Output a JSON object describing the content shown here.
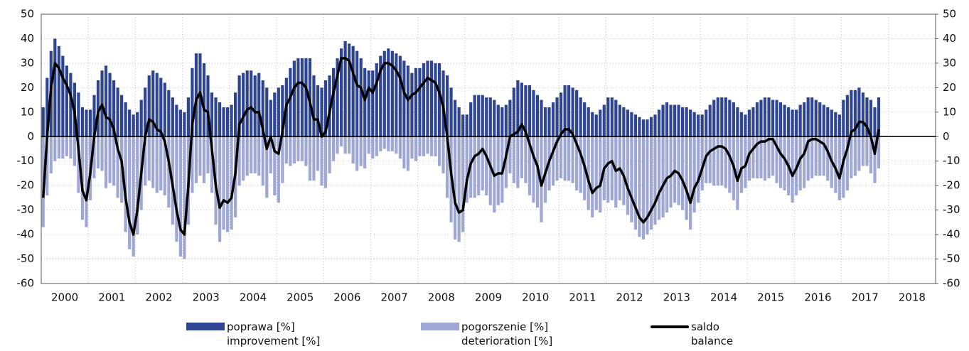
{
  "chart_data": {
    "type": "bar-line",
    "categories": [
      null,
      null,
      null,
      null,
      null,
      null,
      "2000",
      null,
      null,
      null,
      null,
      null,
      null,
      null,
      null,
      null,
      null,
      null,
      "2001",
      null,
      null,
      null,
      null,
      null,
      null,
      null,
      null,
      null,
      null,
      null,
      "2002",
      null,
      null,
      null,
      null,
      null,
      null,
      null,
      null,
      null,
      null,
      null,
      "2003",
      null,
      null,
      null,
      null,
      null,
      null,
      null,
      null,
      null,
      null,
      null,
      "2004",
      null,
      null,
      null,
      null,
      null,
      null,
      null,
      null,
      null,
      null,
      null,
      "2005",
      null,
      null,
      null,
      null,
      null,
      null,
      null,
      null,
      null,
      null,
      null,
      "2006",
      null,
      null,
      null,
      null,
      null,
      null,
      null,
      null,
      null,
      null,
      null,
      "2007",
      null,
      null,
      null,
      null,
      null,
      null,
      null,
      null,
      null,
      null,
      null,
      "2008",
      null,
      null,
      null,
      null,
      null,
      null,
      null,
      null,
      null,
      null,
      null,
      "2009",
      null,
      null,
      null,
      null,
      null,
      null,
      null,
      null,
      null,
      null,
      null,
      "2010",
      null,
      null,
      null,
      null,
      null,
      null,
      null,
      null,
      null,
      null,
      null,
      "2011",
      null,
      null,
      null,
      null,
      null,
      null,
      null,
      null,
      null,
      null,
      null,
      "2012",
      null,
      null,
      null,
      null,
      null,
      null,
      null,
      null,
      null,
      null,
      null,
      "2013",
      null,
      null,
      null,
      null,
      null,
      null,
      null,
      null,
      null,
      null,
      null,
      "2014",
      null,
      null,
      null,
      null,
      null,
      null,
      null,
      null,
      null,
      null,
      null,
      "2015",
      null,
      null,
      null,
      null,
      null,
      null,
      null,
      null,
      null,
      null,
      null,
      "2016",
      null,
      null,
      null,
      null,
      null,
      null,
      null,
      null,
      null,
      null,
      null,
      "2017",
      null,
      null,
      null,
      null,
      null,
      null,
      null,
      null,
      null,
      null,
      null,
      "2018",
      null,
      null,
      null,
      null,
      null
    ],
    "series": [
      {
        "name": "poprawa [%]\nimprovement [%]",
        "type": "bar",
        "color": "#2e4593",
        "values": [
          12,
          24,
          35,
          40,
          37,
          33,
          29,
          26,
          22,
          18,
          12,
          11,
          11,
          17,
          23,
          27,
          29,
          26,
          23,
          20,
          17,
          14,
          11,
          9,
          10,
          15,
          20,
          25,
          27,
          26,
          24,
          22,
          19,
          16,
          13,
          11,
          10,
          16,
          28,
          34,
          34,
          30,
          25,
          18,
          16,
          14,
          12,
          12,
          13,
          18,
          25,
          26,
          27,
          27,
          25,
          26,
          23,
          20,
          15,
          18,
          20,
          21,
          24,
          28,
          31,
          32,
          32,
          32,
          32,
          25,
          21,
          20,
          23,
          25,
          28,
          32,
          36,
          39,
          38,
          37,
          35,
          32,
          28,
          27,
          27,
          30,
          33,
          35,
          36,
          35,
          34,
          33,
          31,
          29,
          26,
          28,
          28,
          30,
          31,
          31,
          30,
          30,
          27,
          25,
          20,
          15,
          12,
          9,
          9,
          14,
          17,
          17,
          17,
          16,
          16,
          15,
          13,
          12,
          13,
          15,
          20,
          23,
          22,
          21,
          21,
          19,
          17,
          15,
          12,
          12,
          14,
          16,
          18,
          21,
          21,
          20,
          19,
          16,
          14,
          12,
          10,
          9,
          11,
          13,
          16,
          16,
          15,
          13,
          12,
          11,
          10,
          9,
          8,
          7,
          7,
          8,
          9,
          11,
          13,
          14,
          13,
          13,
          13,
          12,
          12,
          11,
          10,
          9,
          9,
          11,
          13,
          15,
          16,
          16,
          16,
          15,
          14,
          12,
          10,
          9,
          11,
          12,
          14,
          15,
          16,
          16,
          15,
          15,
          14,
          13,
          12,
          11,
          11,
          13,
          14,
          16,
          16,
          15,
          14,
          13,
          12,
          11,
          10,
          9,
          15,
          17,
          19,
          19,
          20,
          18,
          16,
          15,
          12,
          16,
          null,
          null,
          null,
          null,
          null,
          null,
          null,
          null,
          null,
          null,
          null,
          null,
          null,
          null
        ]
      },
      {
        "name": "pogorszenie [%]\ndeterioration [%]",
        "type": "bar",
        "color": "#9fa8d4",
        "values": [
          -37,
          -24,
          -15,
          -10,
          -9,
          -9,
          -8,
          -9,
          -12,
          -23,
          -34,
          -37,
          -26,
          -17,
          -13,
          -14,
          -21,
          -19,
          -20,
          -25,
          -27,
          -39,
          -46,
          -49,
          -40,
          -30,
          -20,
          -18,
          -21,
          -23,
          -22,
          -24,
          -29,
          -36,
          -43,
          -49,
          -50,
          -36,
          -23,
          -19,
          -16,
          -19,
          -15,
          -23,
          -36,
          -43,
          -38,
          -39,
          -38,
          -33,
          -20,
          -18,
          -16,
          -15,
          -15,
          -16,
          -20,
          -25,
          -15,
          -24,
          -27,
          -19,
          -11,
          -12,
          -11,
          -10,
          -10,
          -12,
          -18,
          -18,
          -14,
          -20,
          -21,
          -15,
          -10,
          -7,
          -4,
          -7,
          -7,
          -11,
          -14,
          -12,
          -13,
          -7,
          -9,
          -8,
          -6,
          -5,
          -6,
          -6,
          -7,
          -9,
          -13,
          -14,
          -9,
          -10,
          -8,
          -8,
          -7,
          -8,
          -8,
          -12,
          -15,
          -25,
          -35,
          -42,
          -43,
          -39,
          -27,
          -25,
          -25,
          -24,
          -22,
          -24,
          -28,
          -31,
          -28,
          -27,
          -21,
          -15,
          -19,
          -21,
          -17,
          -19,
          -24,
          -27,
          -29,
          -35,
          -27,
          -22,
          -20,
          -18,
          -17,
          -18,
          -18,
          -19,
          -22,
          -23,
          -26,
          -30,
          -33,
          -30,
          -31,
          -26,
          -27,
          -26,
          -29,
          -26,
          -28,
          -32,
          -35,
          -38,
          -41,
          -42,
          -40,
          -38,
          -36,
          -34,
          -33,
          -31,
          -29,
          -27,
          -28,
          -30,
          -34,
          -38,
          -31,
          -27,
          -22,
          -19,
          -19,
          -20,
          -20,
          -20,
          -21,
          -23,
          -26,
          -30,
          -23,
          -21,
          -18,
          -17,
          -17,
          -17,
          -18,
          -17,
          -16,
          -19,
          -21,
          -22,
          -24,
          -27,
          -24,
          -22,
          -21,
          -18,
          -17,
          -16,
          -16,
          -16,
          -18,
          -21,
          -23,
          -26,
          -25,
          -22,
          -17,
          -16,
          -14,
          -12,
          -12,
          -15,
          -19,
          -13,
          null,
          null,
          null,
          null,
          null,
          null,
          null,
          null,
          null,
          null,
          null,
          null,
          null,
          null
        ]
      },
      {
        "name": "saldo\nbalance",
        "type": "line",
        "color": "#000000",
        "values": [
          -25,
          0,
          20,
          30,
          28,
          24,
          21,
          17,
          10,
          -5,
          -22,
          -26,
          -15,
          0,
          10,
          13,
          8,
          7,
          3,
          -5,
          -10,
          -25,
          -35,
          -40,
          -30,
          -15,
          0,
          7,
          6,
          3,
          2,
          -2,
          -10,
          -20,
          -30,
          -38,
          -40,
          -20,
          5,
          15,
          18,
          11,
          10,
          -5,
          -20,
          -29,
          -26,
          -27,
          -25,
          -15,
          5,
          8,
          11,
          12,
          10,
          10,
          3,
          -5,
          0,
          -6,
          -7,
          2,
          13,
          16,
          20,
          22,
          22,
          20,
          14,
          7,
          7,
          0,
          2,
          10,
          18,
          25,
          32,
          32,
          31,
          26,
          21,
          20,
          15,
          20,
          18,
          22,
          27,
          30,
          30,
          29,
          27,
          24,
          18,
          15,
          17,
          18,
          20,
          22,
          24,
          23,
          22,
          18,
          12,
          0,
          -15,
          -27,
          -31,
          -30,
          -18,
          -11,
          -8,
          -7,
          -5,
          -8,
          -12,
          -16,
          -15,
          -15,
          -8,
          0,
          1,
          2,
          5,
          2,
          -3,
          -8,
          -12,
          -20,
          -15,
          -10,
          -6,
          -2,
          1,
          3,
          3,
          1,
          -3,
          -7,
          -12,
          -18,
          -23,
          -21,
          -20,
          -13,
          -11,
          -10,
          -14,
          -13,
          -16,
          -21,
          -25,
          -29,
          -33,
          -35,
          -33,
          -30,
          -27,
          -23,
          -20,
          -17,
          -16,
          -14,
          -15,
          -18,
          -22,
          -27,
          -21,
          -18,
          -13,
          -8,
          -6,
          -5,
          -4,
          -4,
          -5,
          -8,
          -12,
          -18,
          -13,
          -12,
          -7,
          -5,
          -3,
          -2,
          -2,
          -1,
          -1,
          -4,
          -7,
          -9,
          -12,
          -16,
          -13,
          -9,
          -7,
          -2,
          -1,
          -1,
          -2,
          -3,
          -6,
          -10,
          -13,
          -17,
          -10,
          -5,
          2,
          3,
          6,
          6,
          4,
          0,
          -7,
          3,
          null,
          null,
          null,
          null,
          null,
          null,
          null,
          null,
          null,
          null,
          null,
          null,
          null,
          null
        ]
      }
    ],
    "ylim": [
      -60,
      50
    ],
    "yticks": [
      -60,
      -50,
      -40,
      -30,
      -20,
      -10,
      0,
      10,
      20,
      30,
      40,
      50
    ],
    "y2lim": [
      -60,
      50
    ],
    "y2ticks": [
      -60,
      -50,
      -40,
      -30,
      -20,
      -10,
      0,
      10,
      20,
      30,
      40,
      50
    ],
    "grid": true
  }
}
